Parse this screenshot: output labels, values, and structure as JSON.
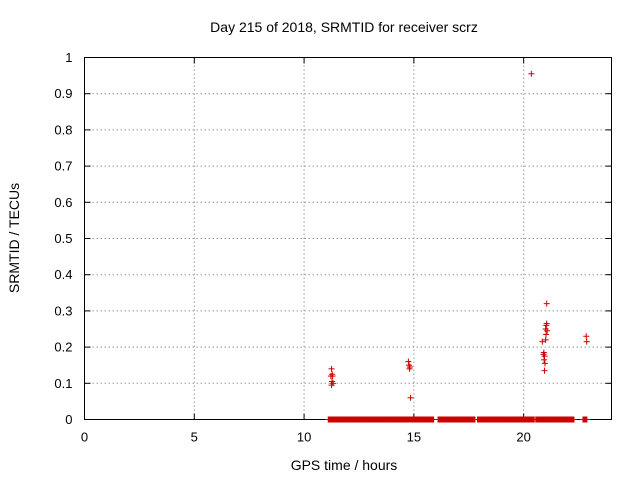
{
  "chart_data": {
    "type": "scatter",
    "title": "Day 215 of 2018, SRMTID for receiver scrz",
    "xlabel": "GPS time / hours",
    "ylabel": "SRMTID / TECUs",
    "xlim": [
      0,
      24
    ],
    "ylim": [
      0,
      1
    ],
    "x_ticks": [
      0,
      5,
      10,
      15,
      20
    ],
    "x_tick_labels": [
      "0",
      "5",
      "10",
      "15",
      "20"
    ],
    "y_ticks": [
      0,
      0.1,
      0.2,
      0.3,
      0.4,
      0.5,
      0.6,
      0.7,
      0.8,
      0.9,
      1
    ],
    "y_tick_labels": [
      "0",
      "0.1",
      "0.2",
      "0.3",
      "0.4",
      "0.5",
      "0.6",
      "0.7",
      "0.8",
      "0.9",
      "1"
    ],
    "grid": true,
    "marker": "+",
    "series": [
      {
        "name": "SRMTID",
        "color": "#cc0000",
        "points": [
          [
            11.25,
            0.14
          ],
          [
            11.28,
            0.125
          ],
          [
            11.3,
            0.12
          ],
          [
            11.22,
            0.12
          ],
          [
            11.27,
            0.105
          ],
          [
            11.32,
            0.1
          ],
          [
            11.25,
            0.095
          ],
          [
            14.75,
            0.16
          ],
          [
            14.78,
            0.15
          ],
          [
            14.8,
            0.14
          ],
          [
            14.82,
            0.145
          ],
          [
            14.85,
            0.06
          ],
          [
            20.35,
            0.955
          ],
          [
            20.85,
            0.215
          ],
          [
            20.9,
            0.18
          ],
          [
            20.92,
            0.185
          ],
          [
            20.95,
            0.175
          ],
          [
            20.93,
            0.165
          ],
          [
            20.97,
            0.155
          ],
          [
            20.95,
            0.135
          ],
          [
            21.0,
            0.22
          ],
          [
            21.02,
            0.235
          ],
          [
            21.0,
            0.25
          ],
          [
            21.03,
            0.26
          ],
          [
            21.05,
            0.265
          ],
          [
            21.07,
            0.245
          ],
          [
            21.05,
            0.32
          ],
          [
            22.85,
            0.23
          ],
          [
            22.87,
            0.215
          ]
        ],
        "zero_ranges": [
          [
            11.1,
            15.9
          ],
          [
            16.1,
            17.8
          ],
          [
            17.9,
            20.5
          ],
          [
            20.55,
            22.3
          ],
          [
            22.7,
            22.9
          ]
        ]
      }
    ]
  }
}
